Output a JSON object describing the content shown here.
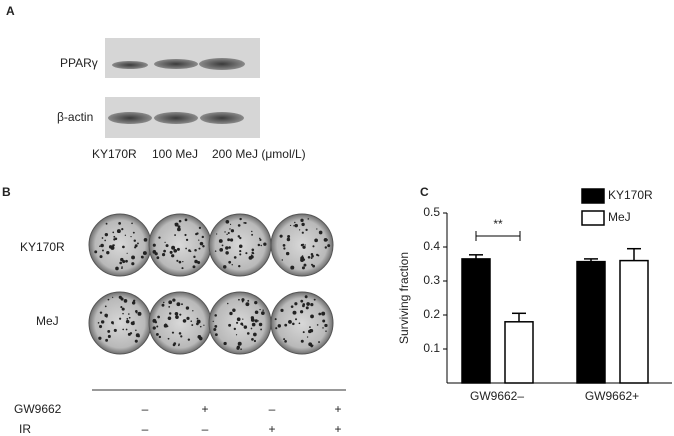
{
  "panel_a": {
    "label": "A",
    "rows": [
      "PPARγ",
      "β-actin"
    ],
    "lanes": [
      "KY170R",
      "100 MeJ",
      "200 MeJ (μmol/L)"
    ]
  },
  "panel_b": {
    "label": "B",
    "rows": [
      "KY170R",
      "MeJ"
    ],
    "treatments": [
      {
        "name": "GW9662",
        "signs": [
          "–",
          "+",
          "–",
          "+"
        ]
      },
      {
        "name": "IR",
        "signs": [
          "–",
          "–",
          "+",
          "+"
        ]
      }
    ]
  },
  "chart_data": {
    "type": "bar",
    "panel_label": "C",
    "y_label": "Surviving fraction",
    "categories": [
      "GW9662–",
      "GW9662+"
    ],
    "series": [
      {
        "name": "KY170R",
        "color": "#000000",
        "values": [
          0.365,
          0.357
        ],
        "errors": [
          0.012,
          0.008
        ]
      },
      {
        "name": "MeJ",
        "color": "#ffffff",
        "values": [
          0.18,
          0.36
        ],
        "errors": [
          0.025,
          0.035
        ]
      }
    ],
    "ylim": [
      0,
      0.5
    ],
    "yticks": [
      0.1,
      0.2,
      0.3,
      0.4,
      0.5
    ],
    "annotations": [
      "**"
    ],
    "legend": "upper right"
  }
}
